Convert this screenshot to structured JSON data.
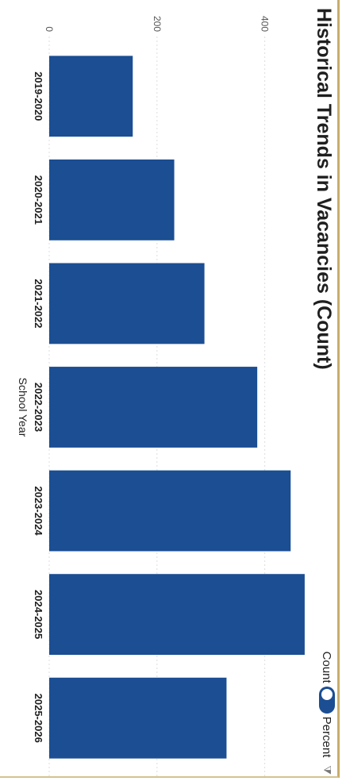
{
  "chart_data": {
    "type": "bar",
    "title": "Historical Trends in Vacancies (Count)",
    "xlabel": "School Year",
    "ylabel": "",
    "categories": [
      "2019-2020",
      "2020-2021",
      "2021-2022",
      "2022-2023",
      "2023-2024",
      "2024-2025",
      "2025-2026"
    ],
    "values": [
      155,
      232,
      288,
      386,
      448,
      474,
      329
    ],
    "yticks": [
      "0",
      "200",
      "400"
    ],
    "ylim": [
      0,
      480
    ],
    "grid": true,
    "bar_color": "#1b4e93"
  },
  "toggle": {
    "left_label": "Count",
    "right_label": "Percent",
    "selected": "Count"
  },
  "icons": {
    "filter": "filter-icon"
  }
}
